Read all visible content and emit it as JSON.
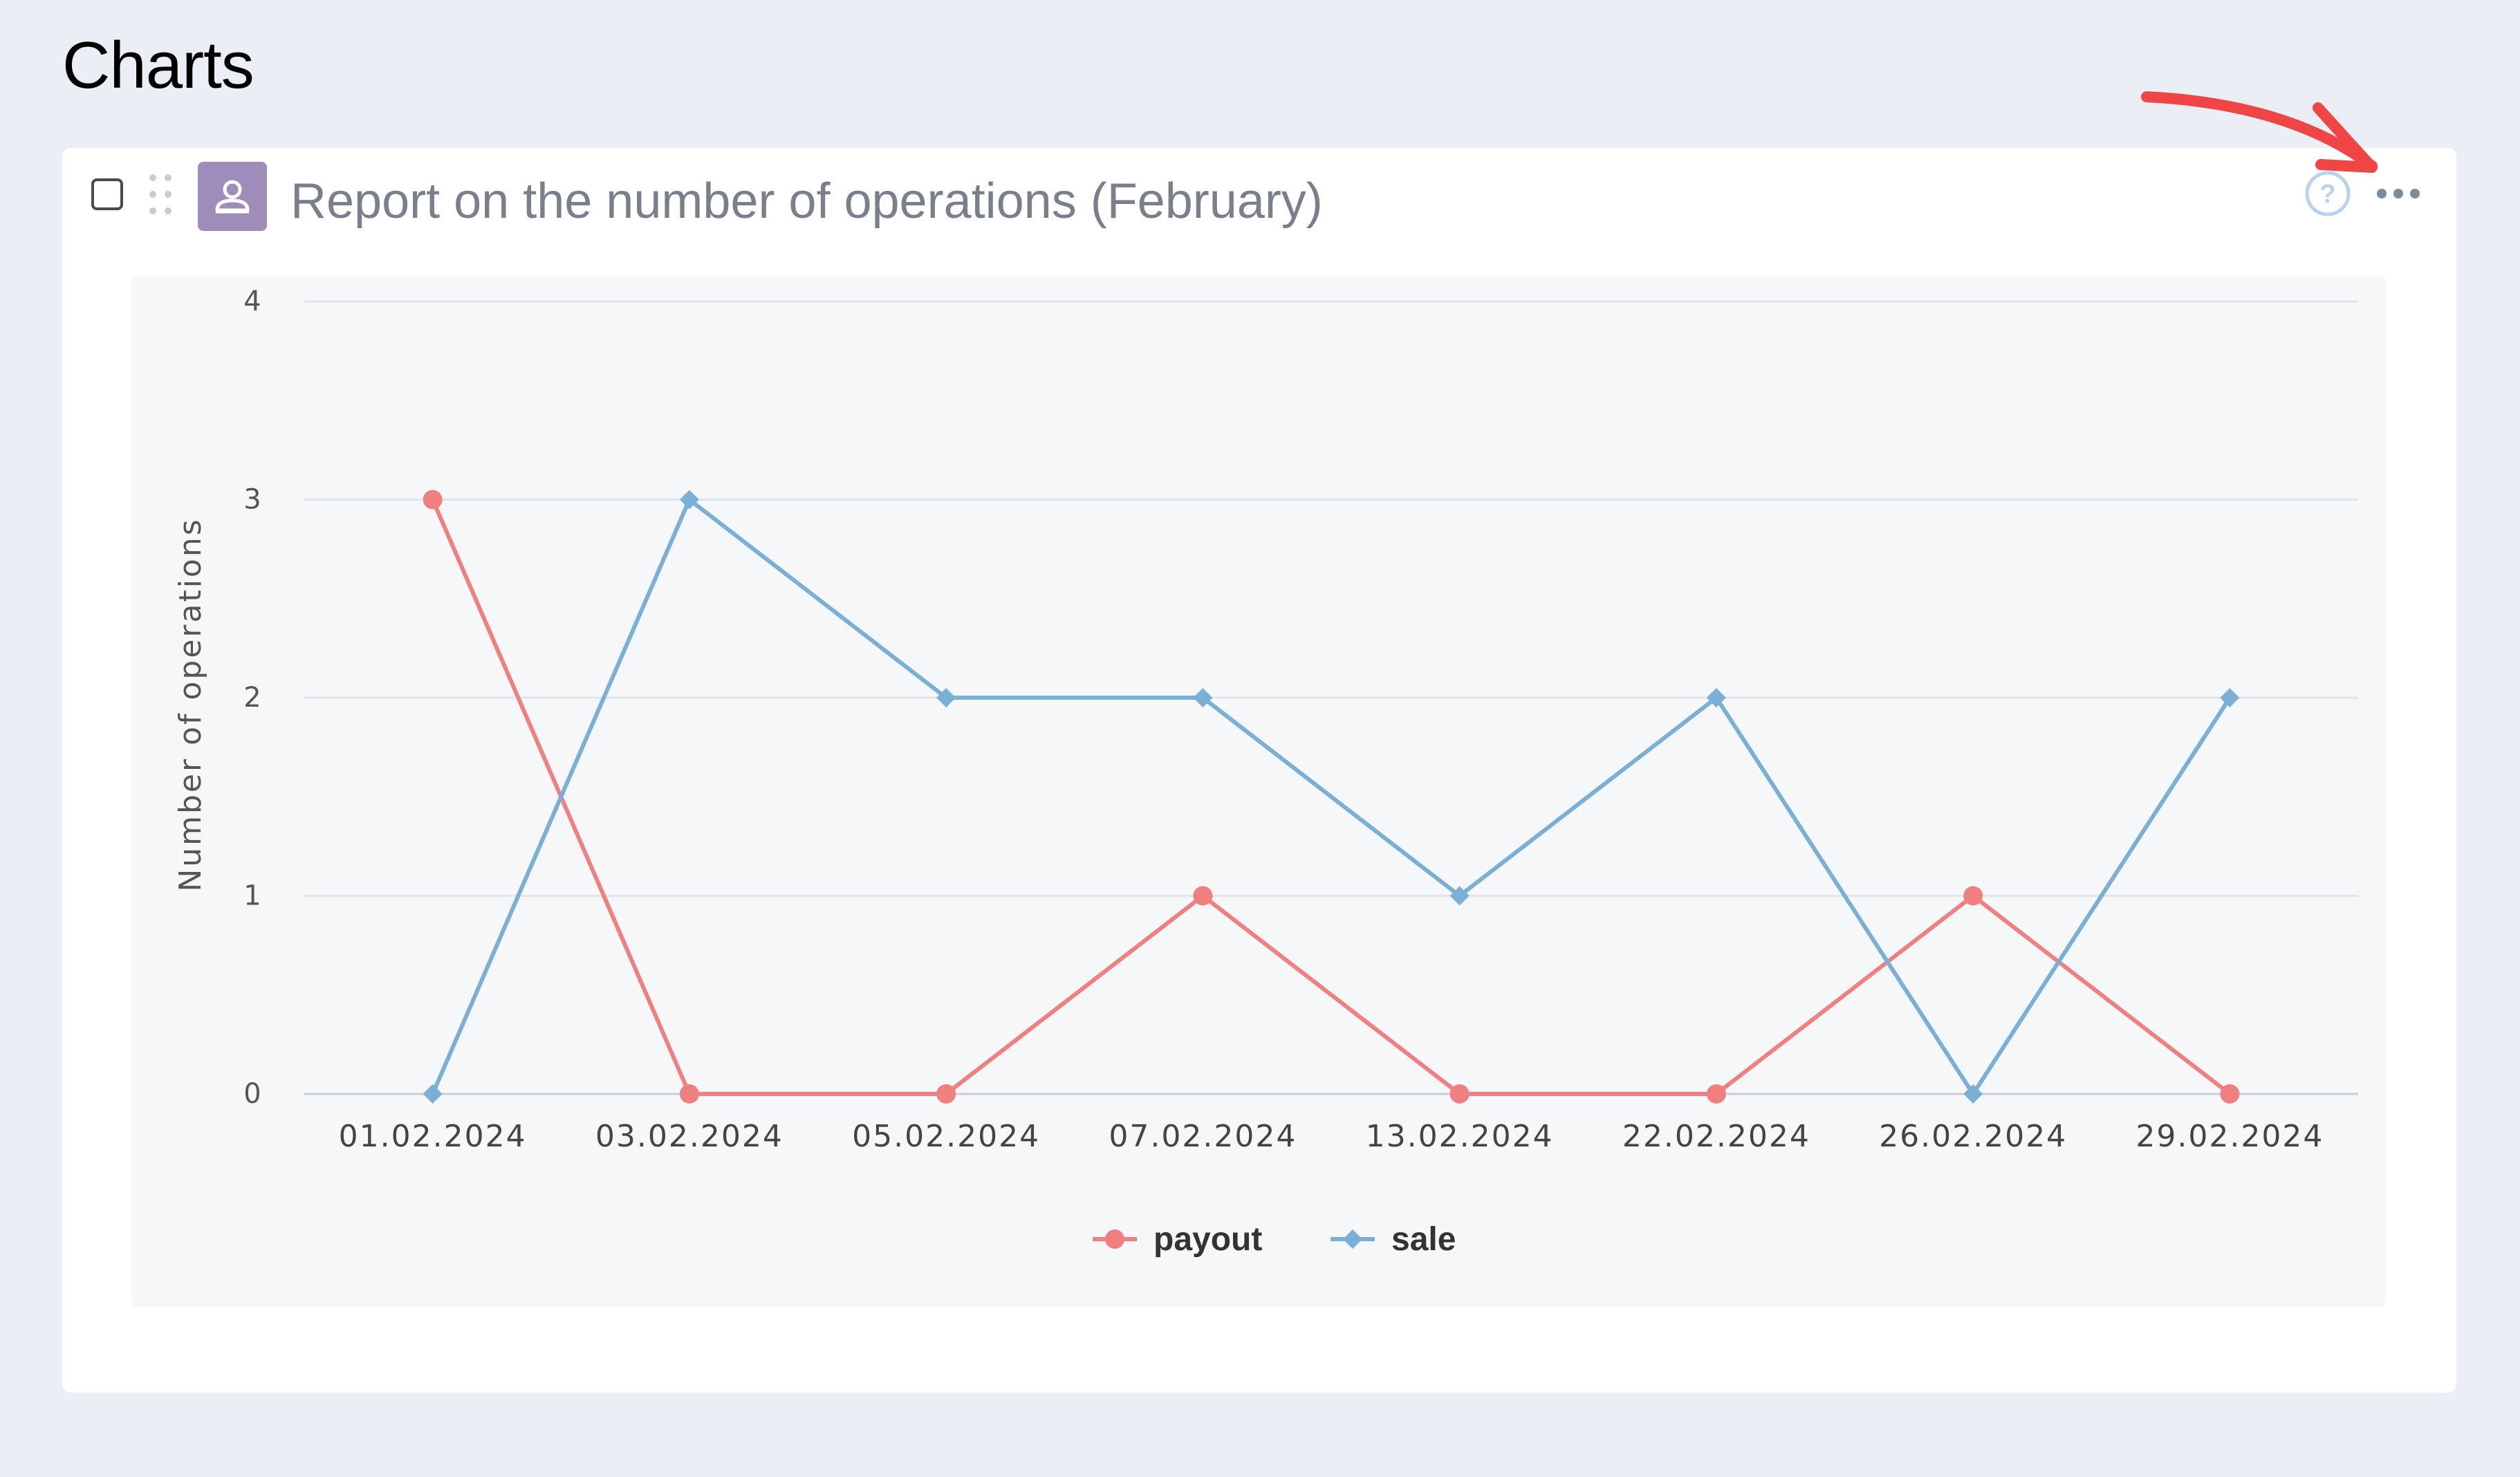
{
  "page": {
    "title": "Charts"
  },
  "widget": {
    "title": "Report on the number of operations (February)",
    "icon": "person-icon",
    "help_icon": "question-circle-icon",
    "menu_icon": "more-horizontal-icon",
    "icon_color": "#9e8dba"
  },
  "annotation": {
    "icon": "red-arrow-icon",
    "color": "#f04545"
  },
  "chart_data": {
    "type": "line",
    "categories": [
      "01.02.2024",
      "03.02.2024",
      "05.02.2024",
      "07.02.2024",
      "13.02.2024",
      "22.02.2024",
      "26.02.2024",
      "29.02.2024"
    ],
    "series": [
      {
        "name": "payout",
        "values": [
          3,
          0,
          0,
          1,
          0,
          0,
          1,
          0
        ],
        "color": "#f08080",
        "marker": "circle"
      },
      {
        "name": "sale",
        "values": [
          0,
          3,
          2,
          2,
          1,
          2,
          0,
          2
        ],
        "color": "#7aafd6",
        "marker": "diamond"
      }
    ],
    "ylabel": "Number of operations",
    "ylim": [
      0,
      4
    ],
    "yticks": [
      "0",
      "1",
      "2",
      "3",
      "4"
    ],
    "grid": true,
    "legend": "bottom-center"
  }
}
